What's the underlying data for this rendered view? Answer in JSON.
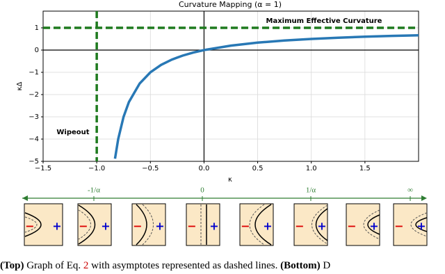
{
  "chart_data": {
    "type": "line",
    "title": "Curvature Mapping (α = 1)",
    "xlabel": "κ",
    "ylabel": "κΔ",
    "x": [
      -0.83,
      -0.8,
      -0.75,
      -0.7,
      -0.6,
      -0.5,
      -0.4,
      -0.3,
      -0.2,
      -0.1,
      0,
      0.25,
      0.5,
      0.75,
      1.0,
      1.25,
      1.5,
      1.75,
      2.0
    ],
    "values": [
      -4.88,
      -4.0,
      -3.0,
      -2.333,
      -1.5,
      -1.0,
      -0.667,
      -0.429,
      -0.25,
      -0.111,
      0,
      0.2,
      0.333,
      0.429,
      0.5,
      0.556,
      0.6,
      0.636,
      0.667
    ],
    "color": "#2878b5",
    "xlim": [
      -1.5,
      2.0
    ],
    "xticks": [
      {
        "value": -1.5,
        "label": "−1.5"
      },
      {
        "value": -1.0,
        "label": "−1.0"
      },
      {
        "value": -0.5,
        "label": "−0.5"
      },
      {
        "value": 0.0,
        "label": "0.0"
      },
      0.5,
      {
        "value": 1.0,
        "label": "1.0"
      },
      1.5
    ],
    "ylim": [
      -5,
      1.75
    ],
    "yticks": [
      1,
      0,
      {
        "value": -1,
        "label": "−1"
      },
      {
        "value": -2,
        "label": "−2"
      },
      {
        "value": -3,
        "label": "−3"
      },
      {
        "value": -4,
        "label": "−4"
      },
      {
        "value": -5,
        "label": "−5"
      }
    ],
    "grid": true,
    "asymptote_y": 1,
    "asymptote_x": -1,
    "asymptote_color": "#1e7a1e",
    "annotations": [
      "Maximum Effective Curvature",
      "Wipeout"
    ]
  },
  "diagram": {
    "axis_labels": [
      "-1/α",
      "0",
      "1/α",
      "∞"
    ],
    "minus": "−",
    "plus": "+"
  },
  "caption": {
    "top_label": "(Top)",
    "text1": " Graph of Eq. ",
    "ref": "2",
    "text2": " with asymptotes represented as dashed lines. ",
    "bottom_label": "(Bottom)",
    "text3": " D"
  }
}
